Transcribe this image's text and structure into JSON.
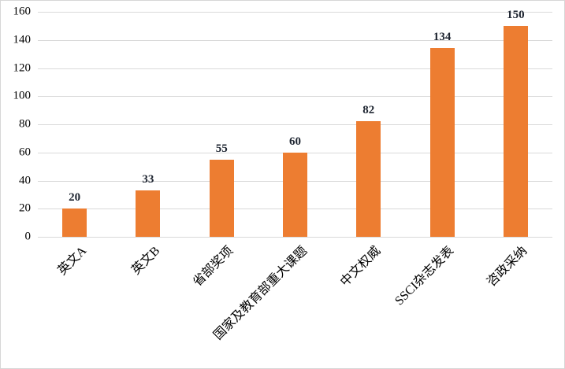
{
  "chart_data": {
    "type": "bar",
    "title": "",
    "xlabel": "",
    "ylabel": "",
    "categories": [
      "英文A",
      "英文B",
      "省部奖项",
      "国家及教育部重大课题",
      "中文权威",
      "SSCI杂志发表",
      "咨政采纳"
    ],
    "values": [
      20,
      33,
      55,
      60,
      82,
      134,
      150
    ],
    "data_labels": [
      "20",
      "33",
      "55",
      "60",
      "82",
      "134",
      "150"
    ],
    "yticks": [
      0,
      20,
      40,
      60,
      80,
      100,
      120,
      140,
      160
    ],
    "ylim": [
      0,
      160
    ],
    "grid": true,
    "legend_position": "none",
    "bar_color": "#ED7D31",
    "gridline_color": "#D9D9D9",
    "frame_border_color": "#D6D6D6",
    "axis_text_color": "#000000",
    "data_label_color": "#1D2430"
  }
}
